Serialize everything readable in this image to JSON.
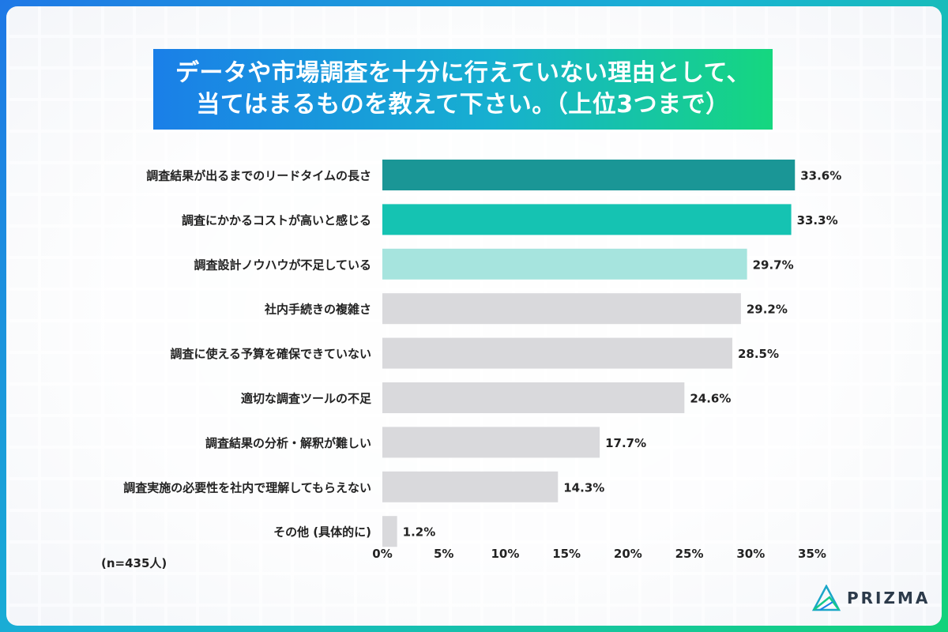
{
  "title": {
    "line1": "データや市場調査を十分に行えていない理由として、",
    "line2": "当てはまるものを教えて下さい。（上位3つまで）"
  },
  "sample_size": "(n=435人)",
  "brand": "PRIZMA",
  "colors": {
    "highlight1": "#1a9696",
    "highlight2": "#15c3b2",
    "highlight3": "#a6e4de",
    "default": "#d9d9dc"
  },
  "chart_data": {
    "type": "bar",
    "orientation": "horizontal",
    "categories": [
      "調査結果が出るまでのリードタイムの長さ",
      "調査にかかるコストが高いと感じる",
      "調査設計ノウハウが不足している",
      "社内手続きの複雑さ",
      "調査に使える予算を確保できていない",
      "適切な調査ツールの不足",
      "調査結果の分析・解釈が難しい",
      "調査実施の必要性を社内で理解してもらえない",
      "その他 (具体的に)"
    ],
    "values": [
      33.6,
      33.3,
      29.7,
      29.2,
      28.5,
      24.6,
      17.7,
      14.3,
      1.2
    ],
    "value_labels": [
      "33.6%",
      "33.3%",
      "29.7%",
      "29.2%",
      "28.5%",
      "24.6%",
      "17.7%",
      "14.3%",
      "1.2%"
    ],
    "bar_colors": [
      "#1a9696",
      "#15c3b2",
      "#a6e4de",
      "#d9d9dc",
      "#d9d9dc",
      "#d9d9dc",
      "#d9d9dc",
      "#d9d9dc",
      "#d9d9dc"
    ],
    "xlim": [
      0,
      35
    ],
    "xticks": [
      0,
      5,
      10,
      15,
      20,
      25,
      30,
      35
    ],
    "xtick_labels": [
      "0%",
      "5%",
      "10%",
      "15%",
      "20%",
      "25%",
      "30%",
      "35%"
    ],
    "grid": false,
    "legend": false
  }
}
